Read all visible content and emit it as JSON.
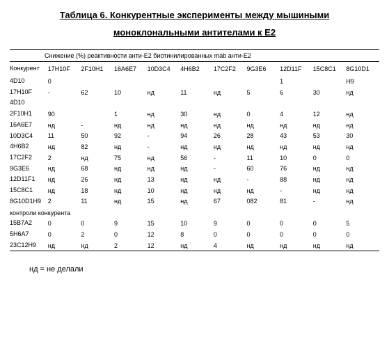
{
  "title_line1": "Таблица 6. Конкурентные эксперименты между мышиными",
  "title_line2": "моноклональными антителами к Е2",
  "caption": "Снижение (%) реактивности анти-Е2 биотинилированных mab анти-Е2",
  "col_first_header": "Конкурент",
  "columns": [
    "17H10F",
    "2F10H1",
    "16A6E7",
    "10D3C4",
    "4H6B2",
    "17C2F2",
    "9G3E6",
    "12D11F",
    "15C8C1",
    "8G10D1"
  ],
  "rows": [
    {
      "label": "4D10",
      "cells": [
        "0",
        "",
        "",
        "",
        "",
        "",
        "",
        "1",
        "",
        "H9"
      ]
    },
    {
      "label": "17H10F",
      "cells": [
        "62",
        "10",
        "нд",
        "11",
        "нд",
        "5",
        "6",
        "30",
        "нд",
        ""
      ]
    },
    {
      "label": "4D10",
      "cells": [
        "",
        "",
        "",
        "",
        "",
        "",
        "",
        "",
        "",
        ""
      ]
    },
    {
      "label": "2F10H1",
      "cells": [
        "",
        "1",
        "нд",
        "30",
        "нд",
        "0",
        "4",
        "12",
        "нд",
        "90"
      ]
    },
    {
      "label": "16A6E7",
      "cells": [
        "нд",
        "-",
        "нд",
        "нд",
        "нд",
        "нд",
        "нд",
        "нд",
        "нд",
        "нд"
      ]
    },
    {
      "label": "10D3C4",
      "cells": [
        "50",
        "92",
        "-",
        "94",
        "26",
        "28",
        "43",
        "53",
        "30",
        "11"
      ]
    },
    {
      "label": "4H6B2",
      "cells": [
        "нд",
        "82",
        "нд",
        "-",
        "нд",
        "нд",
        "нд",
        "нд",
        "нд",
        "нд"
      ]
    },
    {
      "label": "17C2F2",
      "cells": [
        "нд",
        "75",
        "нд",
        "56",
        "-",
        "11",
        "10",
        "0",
        "0",
        "2"
      ]
    },
    {
      "label": "9G3E6",
      "cells": [
        "нд",
        "68",
        "нд",
        "нд",
        "нд",
        "-",
        "60",
        "76",
        "нд",
        "нд"
      ]
    },
    {
      "label": "12D11F1",
      "cells": [
        "нд",
        "26",
        "нд",
        "13",
        "нд",
        "нд",
        "-",
        "88",
        "нд",
        "нд"
      ]
    },
    {
      "label": "15С8С1",
      "cells": [
        "нд",
        "18",
        "нд",
        "10",
        "нд",
        "нд",
        "нд",
        "-",
        "нд",
        "нд"
      ]
    },
    {
      "label": "8G10D1H9",
      "cells": [
        "2",
        "11",
        "нд",
        "15",
        "нд",
        "67",
        "082",
        "81",
        "-",
        "нд"
      ]
    }
  ],
  "section_label": "контроли конкурента",
  "control_rows": [
    {
      "label": "15B7A2",
      "cells": [
        "0",
        "9",
        "15",
        "10",
        "9",
        "0",
        "0",
        "0",
        "5",
        "0"
      ]
    },
    {
      "label": "5H6A7",
      "cells": [
        "2",
        "0",
        "12",
        "8",
        "0",
        "0",
        "0",
        "0",
        "0",
        "0"
      ]
    },
    {
      "label": "23С12Н9",
      "cells": [
        "нд",
        "2",
        "12",
        "нд",
        "4",
        "нд",
        "нд",
        "нд",
        "нд",
        "нд"
      ]
    }
  ],
  "footnote": "нд = не делали"
}
